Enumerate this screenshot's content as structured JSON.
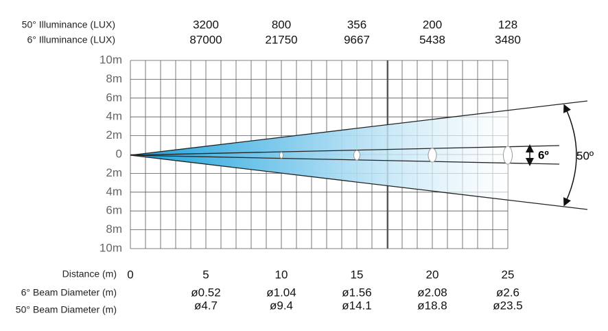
{
  "row_labels": {
    "lux50": "50° Illuminance (LUX)",
    "lux6": "6° Illuminance (LUX)",
    "distance": "Distance  (m)",
    "diam6": "6° Beam Diameter  (m)",
    "diam50": "50° Beam Diameter  (m)"
  },
  "origin_distance": 0,
  "y_axis": [
    "10m",
    "8m",
    "6m",
    "4m",
    "2m",
    "0",
    "2m",
    "4m",
    "6m",
    "8m",
    "10m"
  ],
  "columns": [
    {
      "distance": 5,
      "lux50": 3200,
      "lux6": 87000,
      "diam6": "ø0.52",
      "diam50": "ø4.7"
    },
    {
      "distance": 10,
      "lux50": 800,
      "lux6": 21750,
      "diam6": "ø1.04",
      "diam50": "ø9.4"
    },
    {
      "distance": 15,
      "lux50": 356,
      "lux6": 9667,
      "diam6": "ø1.56",
      "diam50": "ø14.1"
    },
    {
      "distance": 20,
      "lux50": 200,
      "lux6": 5438,
      "diam6": "ø2.08",
      "diam50": "ø18.8"
    },
    {
      "distance": 25,
      "lux50": 128,
      "lux6": 3480,
      "diam6": "ø2.6",
      "diam50": "ø23.5"
    }
  ],
  "angles": {
    "narrow": "6º",
    "wide": "50º"
  }
}
